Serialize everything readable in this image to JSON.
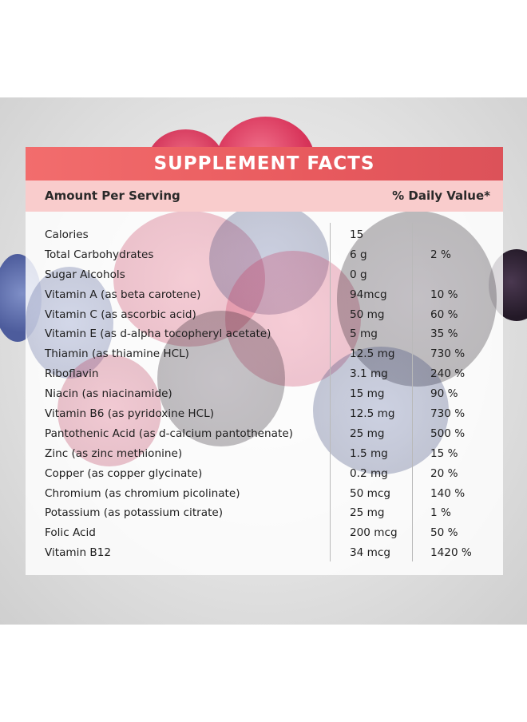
{
  "title": "SUPPLEMENT FACTS",
  "header": {
    "amount_label": "Amount Per Serving",
    "daily_value_label": "% Daily Value*"
  },
  "colors": {
    "title_bar": "#e85a5e",
    "header_bar": "#f9cccc"
  },
  "rows": [
    {
      "name": "Calories",
      "amount": "15",
      "dv": ""
    },
    {
      "name": "Total Carbohydrates",
      "amount": "6 g",
      "dv": "2 %"
    },
    {
      "name": "Sugar Alcohols",
      "amount": "0 g",
      "dv": ""
    },
    {
      "name": "Vitamin A (as beta carotene)",
      "amount": "94mcg",
      "dv": "10 %"
    },
    {
      "name": "Vitamin C (as ascorbic acid)",
      "amount": "50 mg",
      "dv": "60 %"
    },
    {
      "name": "Vitamin E (as d-alpha tocopheryl acetate)",
      "amount": "5 mg",
      "dv": "35 %"
    },
    {
      "name": "Thiamin (as thiamine HCL)",
      "amount": "12.5 mg",
      "dv": "730 %"
    },
    {
      "name": "Riboflavin",
      "amount": "3.1 mg",
      "dv": "240 %"
    },
    {
      "name": "Niacin (as niacinamide)",
      "amount": "15 mg",
      "dv": "90 %"
    },
    {
      "name": "Vitamin B6 (as pyridoxine HCL)",
      "amount": "12.5 mg",
      "dv": "730 %"
    },
    {
      "name": "Pantothenic Acid (as d-calcium pantothenate)",
      "amount": "25 mg",
      "dv": "500 %"
    },
    {
      "name": "Zinc (as zinc methionine)",
      "amount": "1.5 mg",
      "dv": "15 %"
    },
    {
      "name": "Copper (as copper glycinate)",
      "amount": "0.2 mg",
      "dv": "20 %"
    },
    {
      "name": "Chromium (as chromium picolinate)",
      "amount": "50 mcg",
      "dv": "140 %"
    },
    {
      "name": "Potassium (as potassium citrate)",
      "amount": "25 mg",
      "dv": "1 %"
    },
    {
      "name": "Folic Acid",
      "amount": "200 mcg",
      "dv": "50 %"
    },
    {
      "name": "Vitamin B12",
      "amount": "34 mcg",
      "dv": "1420 %"
    }
  ]
}
